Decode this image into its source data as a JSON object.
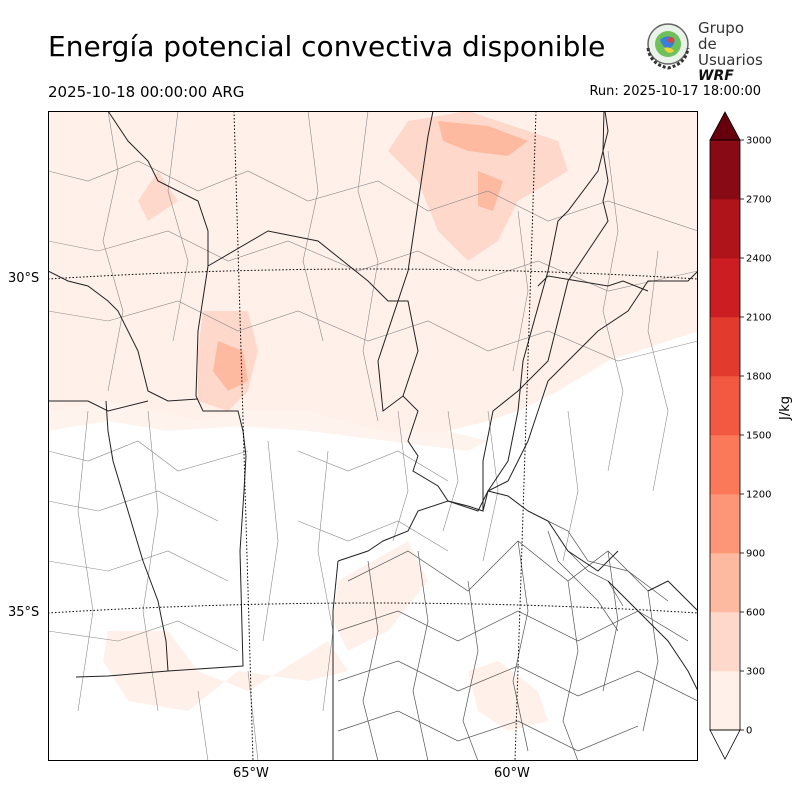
{
  "header": {
    "title": "Energía potencial convectiva disponible",
    "valid_time": "2025-10-18 00:00:00 ARG",
    "run_time": "Run: 2025-10-17 18:00:00"
  },
  "logo": {
    "line1": "Grupo de",
    "line2": "Usuarios",
    "line3": "WRF",
    "icon": "globe-laurel-icon"
  },
  "map": {
    "lat_labels": [
      "30°S",
      "35°S"
    ],
    "lon_labels": [
      "65°W",
      "60°W"
    ]
  },
  "colorbar": {
    "unit_label": "J/kg",
    "ticks": [
      "0",
      "300",
      "600",
      "900",
      "1200",
      "1500",
      "1800",
      "2100",
      "2400",
      "2700",
      "3000"
    ],
    "colors": [
      "#fff0ea",
      "#fed9cb",
      "#fdbaa0",
      "#fc9676",
      "#fb7858",
      "#f35840",
      "#e33a2e",
      "#cc1d22",
      "#ae141a",
      "#880a14"
    ],
    "under_color": "#ffffff",
    "over_color": "#67000d"
  }
}
